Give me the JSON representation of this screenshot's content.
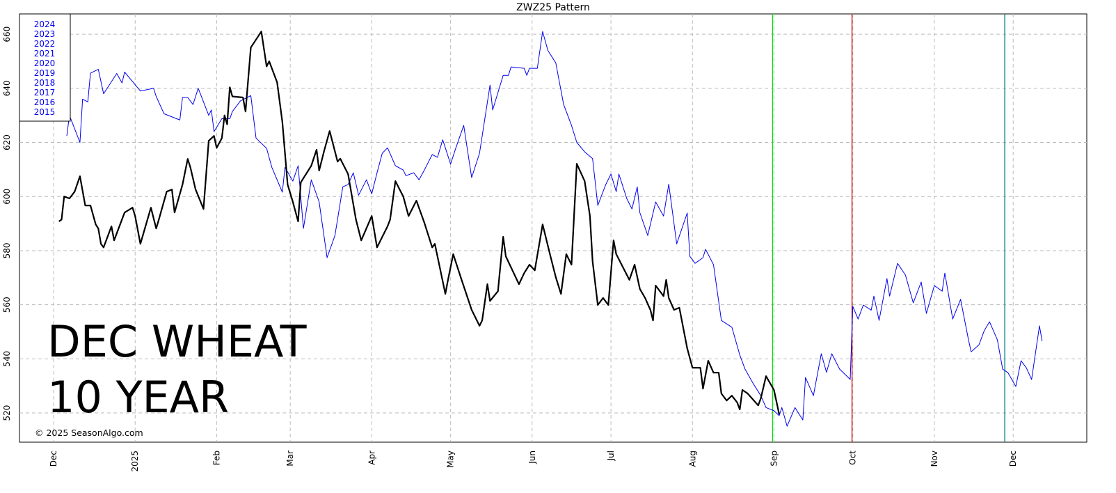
{
  "chart_data": {
    "type": "line",
    "title": "ZWZ25  Pattern",
    "annotations": [
      "DEC WHEAT",
      "10 YEAR"
    ],
    "credit": "© 2025 SeasonAlgo.com",
    "legend": [
      "2024",
      "2023",
      "2022",
      "2021",
      "2020",
      "2019",
      "2018",
      "2017",
      "2016",
      "2015"
    ],
    "legend_color": "#0000ee",
    "xlim": [
      -13,
      393
    ],
    "ylim": [
      509.2,
      667.5
    ],
    "xticks": [
      {
        "value": 0,
        "label": "Dec"
      },
      {
        "value": 31,
        "label": "2025"
      },
      {
        "value": 62,
        "label": "Feb"
      },
      {
        "value": 90,
        "label": "Mar"
      },
      {
        "value": 121,
        "label": "Apr"
      },
      {
        "value": 151,
        "label": "May"
      },
      {
        "value": 182,
        "label": "Jun"
      },
      {
        "value": 212,
        "label": "Jul"
      },
      {
        "value": 243,
        "label": "Aug"
      },
      {
        "value": 274,
        "label": "Sep"
      },
      {
        "value": 304,
        "label": "Oct"
      },
      {
        "value": 335,
        "label": "Nov"
      },
      {
        "value": 365,
        "label": "Dec"
      }
    ],
    "yticks": [
      520,
      540,
      560,
      580,
      600,
      620,
      640,
      660
    ],
    "grid": true,
    "vlines": [
      {
        "x": 273.5,
        "color": "#00e000"
      },
      {
        "x": 303.7,
        "color": "#cc0000"
      },
      {
        "x": 361.8,
        "color": "#008080"
      }
    ],
    "series": [
      {
        "color": "#0000ee",
        "width": 1,
        "x": [
          5,
          6,
          10,
          11,
          13,
          14,
          17,
          19,
          21,
          24,
          26,
          27,
          33,
          38,
          39,
          42,
          48,
          49,
          51,
          53,
          55,
          59,
          60,
          61,
          64,
          67,
          68,
          71,
          75,
          77,
          81,
          83,
          87,
          88,
          91,
          93,
          95,
          98,
          101,
          104,
          107,
          110,
          112,
          114,
          116,
          119,
          121,
          123,
          125,
          127,
          130,
          133,
          134,
          137,
          139,
          141,
          144,
          146,
          148,
          151,
          153,
          156,
          159,
          162,
          166,
          167,
          171,
          173,
          174,
          179,
          180,
          181,
          184,
          186,
          188,
          191,
          194,
          197,
          199,
          202,
          205,
          207,
          210,
          212,
          214,
          215,
          218,
          220,
          222,
          223,
          226,
          229,
          232,
          234,
          237,
          241,
          242,
          244,
          247,
          248,
          251,
          254,
          258,
          261,
          263,
          266,
          269,
          271,
          274,
          276,
          277,
          279,
          282,
          285,
          286,
          289,
          292,
          294,
          296,
          299,
          303,
          304,
          306,
          308,
          311,
          312,
          314,
          317,
          318,
          321,
          324,
          327,
          330,
          332,
          335,
          338,
          339,
          342,
          345,
          348,
          349,
          352,
          354,
          356,
          359,
          361,
          363,
          366,
          368,
          370,
          372,
          375,
          376
        ],
        "values": [
          622.4,
          630,
          620,
          636,
          635,
          645.6,
          647,
          638,
          641,
          645.5,
          642,
          646,
          639,
          640,
          637,
          630.6,
          628.3,
          636.6,
          636.6,
          634,
          640,
          630,
          632,
          624,
          628.8,
          628.8,
          631.4,
          635.3,
          637.3,
          621.6,
          617.8,
          610.8,
          601.6,
          610.8,
          605.7,
          611.4,
          588.2,
          606.2,
          598,
          577.4,
          585.6,
          603.6,
          604.4,
          608.8,
          600.5,
          606.2,
          601,
          608.8,
          616,
          618,
          611.4,
          609.8,
          607.7,
          608.8,
          606.2,
          609.8,
          615.5,
          614.5,
          621,
          612,
          618,
          626.3,
          607,
          616,
          641.2,
          632,
          644.8,
          644.8,
          647.9,
          647.4,
          644.8,
          647.4,
          647.4,
          661,
          654,
          649.4,
          634,
          626.3,
          620,
          616.5,
          614,
          596.7,
          604.4,
          608.3,
          601.8,
          608.3,
          599.3,
          595.4,
          603.6,
          594,
          585.6,
          598,
          592.8,
          604.6,
          582.5,
          593.9,
          577.9,
          575.3,
          577.4,
          580.5,
          574.8,
          554.2,
          551.7,
          541.4,
          536.2,
          531,
          526.4,
          522,
          520.8,
          519,
          522,
          515.1,
          522,
          517.4,
          533.1,
          526.4,
          541.9,
          535,
          541.9,
          536.2,
          532.4,
          559.4,
          554.7,
          559.9,
          558,
          563.2,
          554.2,
          569.7,
          563.2,
          575.3,
          571,
          560.7,
          568.4,
          556.8,
          567.1,
          565,
          571.7,
          554.7,
          562,
          547,
          542.6,
          545.2,
          550.4,
          553.7,
          547,
          536.2,
          534.9,
          529.8,
          539.3,
          536.7,
          532.4,
          552.2,
          546.5
        ]
      },
      {
        "color": "#000000",
        "width": 2.2,
        "x": [
          2,
          3,
          4,
          6,
          8,
          10,
          12,
          14,
          16,
          17,
          18,
          19,
          22,
          23,
          27,
          30,
          31,
          33,
          37,
          39,
          40,
          43,
          45,
          46,
          49,
          51,
          52,
          54,
          57,
          59,
          61,
          62,
          64,
          65,
          66,
          67,
          68,
          72,
          73,
          75,
          79,
          81,
          82,
          85,
          87,
          89,
          91,
          93,
          94,
          98,
          100,
          101,
          103,
          105,
          108,
          109,
          112,
          115,
          117,
          121,
          123,
          127,
          128,
          130,
          133,
          135,
          138,
          141,
          144,
          145,
          149,
          150,
          152,
          155,
          159,
          162,
          163,
          165,
          166,
          169,
          171,
          172,
          177,
          179,
          181,
          183,
          186,
          189,
          191,
          193,
          195,
          197,
          199,
          202,
          204,
          205,
          207,
          209,
          211,
          213,
          214,
          219,
          221,
          223,
          225,
          227,
          228,
          229,
          232,
          233,
          234,
          236,
          238,
          241,
          243,
          246,
          247,
          249,
          251,
          253,
          254,
          256,
          258,
          260,
          261,
          262,
          264,
          268,
          269,
          271,
          274,
          276
        ],
        "values": [
          590.8,
          591.5,
          600,
          599.3,
          601.8,
          607.5,
          596.7,
          596.7,
          589.7,
          588.2,
          582.5,
          581.2,
          589,
          583.8,
          594.1,
          595.9,
          592.8,
          582.5,
          595.9,
          588.2,
          591.5,
          601.8,
          602.6,
          594.1,
          604.4,
          613.9,
          610.8,
          602.6,
          595.4,
          620.6,
          622.4,
          618,
          621.6,
          630,
          626.7,
          640.4,
          637,
          636.6,
          631.4,
          655.1,
          661,
          648.1,
          650,
          642.2,
          627.6,
          604.4,
          598,
          590.8,
          605.2,
          611.4,
          617.3,
          609.6,
          617.3,
          624.2,
          612.9,
          614,
          608.3,
          591.5,
          583.8,
          592.8,
          581.2,
          589,
          591.5,
          605.7,
          600,
          592.8,
          598.5,
          590.3,
          581.2,
          582.5,
          564,
          569.2,
          578.7,
          569.7,
          558.1,
          552.2,
          554.2,
          567.6,
          561.4,
          565,
          585.1,
          577.9,
          567.6,
          571.7,
          574.8,
          572.7,
          589.7,
          577.9,
          570.2,
          564,
          578.7,
          574.8,
          612.1,
          605.7,
          592.8,
          576.1,
          559.9,
          562.5,
          559.9,
          583.8,
          578.7,
          569.2,
          574.8,
          565.8,
          562.5,
          558.1,
          554.2,
          567.1,
          563.2,
          569.2,
          562.5,
          558.1,
          558.9,
          543.9,
          536.7,
          536.7,
          529,
          539.3,
          534.9,
          534.9,
          527.2,
          524.6,
          526.4,
          523.9,
          521.3,
          528.5,
          527.2,
          522.8,
          525.4,
          533.6,
          528.5,
          519.5
        ]
      }
    ]
  }
}
